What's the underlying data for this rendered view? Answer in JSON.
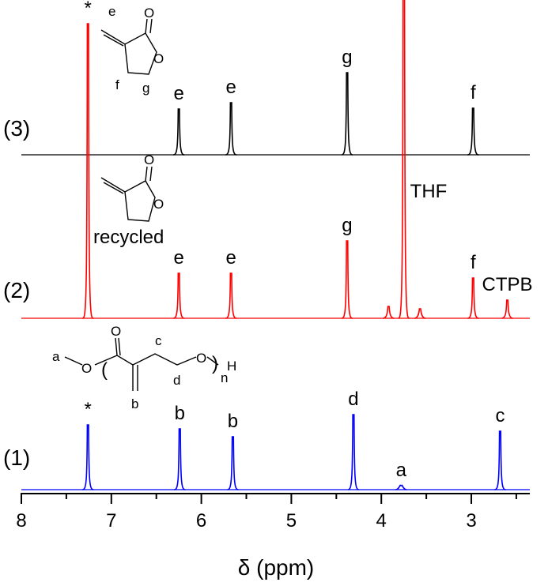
{
  "chart_data": {
    "type": "spectrum",
    "xlabel": "δ (ppm)",
    "xlim": [
      8,
      2.35
    ],
    "xticks": [
      8,
      7,
      6,
      5,
      4,
      3
    ],
    "minor_xticks": [
      7.5,
      6.5,
      5.5,
      4.5,
      3.5,
      2.5
    ],
    "series": [
      {
        "name": "(3)",
        "color": "#000000",
        "x": [
          6.25,
          5.67,
          4.38,
          2.98
        ],
        "values": [
          58,
          66,
          104,
          59
        ],
        "labels": [
          "e",
          "e",
          "g",
          "f"
        ]
      },
      {
        "name": "(2)",
        "color": "#ff0000",
        "x": [
          7.26,
          6.25,
          5.67,
          4.38,
          3.92,
          3.75,
          3.57,
          2.98,
          2.6
        ],
        "values": [
          373,
          57,
          57,
          98,
          15,
          560,
          12,
          51,
          23
        ],
        "labels": [
          "*",
          "e",
          "e",
          "g",
          null,
          "THF",
          null,
          "f",
          "CTPB"
        ]
      },
      {
        "name": "(1)",
        "color": "#0000ff",
        "x": [
          7.26,
          6.24,
          5.65,
          4.31,
          3.78,
          2.68
        ],
        "values": [
          82,
          77,
          67,
          95,
          5,
          74
        ],
        "labels": [
          "*",
          "b",
          "b",
          "d",
          "a",
          "c"
        ]
      }
    ],
    "structure_3": [
      "e",
      "O",
      "O",
      "f",
      "g"
    ],
    "structure_2": [
      "O",
      "O",
      "recycled"
    ],
    "structure_1": [
      "a",
      "O",
      "O",
      "c",
      "O",
      "d",
      "b",
      "n",
      "H"
    ]
  }
}
